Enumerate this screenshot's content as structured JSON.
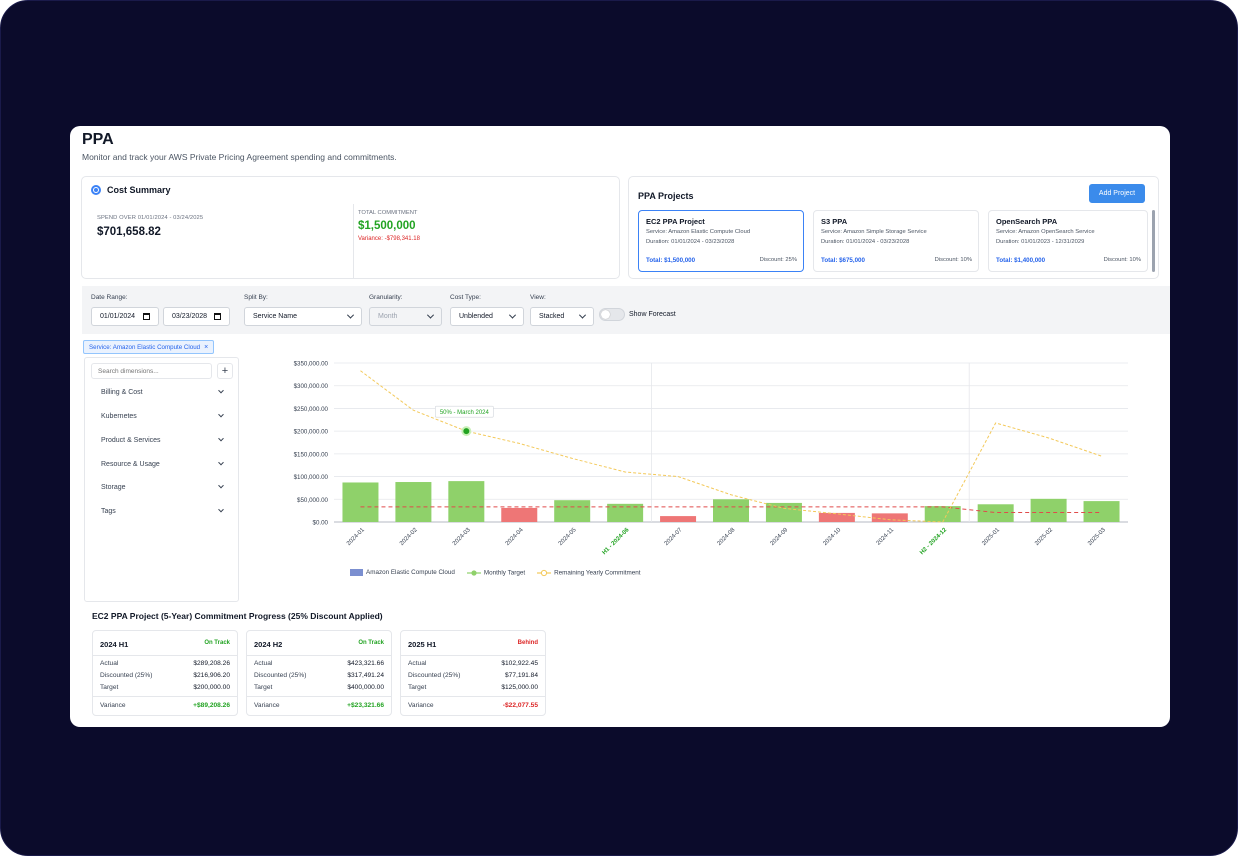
{
  "page": {
    "title": "PPA",
    "subtitle": "Monitor and track your AWS Private Pricing Agreement spending and commitments."
  },
  "cost_summary": {
    "title": "Cost Summary",
    "spend_label": "SPEND OVER 01/01/2024 - 03/24/2025",
    "spend_value": "$701,658.82",
    "commitment_label": "TOTAL COMMITMENT",
    "commitment_value": "$1,500,000",
    "variance": "Variance: -$798,341.18"
  },
  "projects": {
    "title": "PPA Projects",
    "add_label": "Add Project",
    "items": [
      {
        "name": "EC2 PPA Project",
        "service": "Service: Amazon Elastic Compute Cloud",
        "duration": "Duration: 01/01/2024 - 03/23/2028",
        "total": "Total: $1,500,000",
        "discount": "Discount: 25%"
      },
      {
        "name": "S3 PPA",
        "service": "Service: Amazon Simple Storage Service",
        "duration": "Duration: 01/01/2024 - 03/23/2028",
        "total": "Total: $675,000",
        "discount": "Discount: 10%"
      },
      {
        "name": "OpenSearch PPA",
        "service": "Service: Amazon OpenSearch Service",
        "duration": "Duration: 01/01/2023 - 12/31/2029",
        "total": "Total: $1,400,000",
        "discount": "Discount: 10%"
      }
    ]
  },
  "filters": {
    "date_range_label": "Date Range:",
    "date_start": "01/01/2024",
    "date_end": "03/23/2028",
    "split_by_label": "Split By:",
    "split_by_value": "Service Name",
    "granularity_label": "Granularity:",
    "granularity_value": "Month",
    "cost_type_label": "Cost Type:",
    "cost_type_value": "Unblended",
    "view_label": "View:",
    "view_value": "Stacked",
    "show_forecast_label": "Show Forecast"
  },
  "service_chip": {
    "label": "Service: Amazon Elastic Compute Cloud",
    "close": "×"
  },
  "dimensions": {
    "search_placeholder": "Search dimensions...",
    "add": "+",
    "items": [
      "Billing & Cost",
      "Kubernetes",
      "Product & Services",
      "Resource & Usage",
      "Storage",
      "Tags"
    ]
  },
  "chart_data": {
    "type": "bar",
    "categories": [
      "2024-01",
      "2024-02",
      "2024-03",
      "2024-04",
      "2024-05",
      "H1 - 2024-06",
      "2024-07",
      "2024-08",
      "2024-09",
      "2024-10",
      "2024-11",
      "H2 - 2024-12",
      "2025-01",
      "2025-02",
      "2025-03"
    ],
    "highlighted_categories": [
      "H1 - 2024-06",
      "H2 - 2024-12"
    ],
    "series": [
      {
        "name": "Amazon Elastic Compute Cloud",
        "type": "bar",
        "values": [
          87000,
          88000,
          90000,
          31000,
          48000,
          40000,
          13000,
          50000,
          42000,
          20000,
          19000,
          35000,
          39000,
          51000,
          46000
        ],
        "status": [
          "good",
          "good",
          "good",
          "bad",
          "good",
          "good",
          "bad",
          "good",
          "good",
          "bad",
          "bad",
          "good",
          "good",
          "good",
          "good"
        ]
      },
      {
        "name": "Monthly Target",
        "type": "line",
        "values": [
          33333,
          33333,
          33333,
          33333,
          33333,
          33333,
          33333,
          33333,
          33333,
          33333,
          33333,
          33333,
          20833,
          20833,
          20833
        ]
      },
      {
        "name": "Remaining Yearly Commitment",
        "type": "line",
        "values": [
          333000,
          246000,
          200000,
          173000,
          140000,
          110000,
          100000,
          60000,
          30000,
          18000,
          5000,
          0,
          218000,
          185000,
          145000
        ]
      }
    ],
    "colors": {
      "good": "#8fd16a",
      "bad": "#ee7676",
      "target": "#e04b4b",
      "remaining": "#f3c95a",
      "legend_bar": "#7b8fd0",
      "highlight_tick": "#22a322"
    },
    "yticks": [
      "$0.00",
      "$50,000.00",
      "$100,000.00",
      "$150,000.00",
      "$200,000.00",
      "$250,000.00",
      "$300,000.00",
      "$350,000.00"
    ],
    "ylim": [
      0,
      350000
    ],
    "annotation": {
      "text": "50% - March 2024",
      "category": "2024-03",
      "value": 200000
    },
    "grid": true,
    "legend_position": "bottom"
  },
  "progress": {
    "title": "EC2 PPA Project (5-Year) Commitment Progress (25% Discount Applied)",
    "cards": [
      {
        "name": "2024 H1",
        "status": "On Track",
        "status_color": "#22a322",
        "actual": "$289,208.26",
        "discounted": "$216,906.20",
        "target": "$200,000.00",
        "variance": "+$89,208.26",
        "variance_color": "#22a322"
      },
      {
        "name": "2024 H2",
        "status": "On Track",
        "status_color": "#22a322",
        "actual": "$423,321.66",
        "discounted": "$317,491.24",
        "target": "$400,000.00",
        "variance": "+$23,321.66",
        "variance_color": "#22a322"
      },
      {
        "name": "2025 H1",
        "status": "Behind",
        "status_color": "#dc2626",
        "actual": "$102,922.45",
        "discounted": "$77,191.84",
        "target": "$125,000.00",
        "variance": "-$22,077.55",
        "variance_color": "#dc2626"
      }
    ],
    "labels": {
      "actual": "Actual",
      "discounted": "Discounted (25%)",
      "target": "Target",
      "variance": "Variance"
    }
  }
}
